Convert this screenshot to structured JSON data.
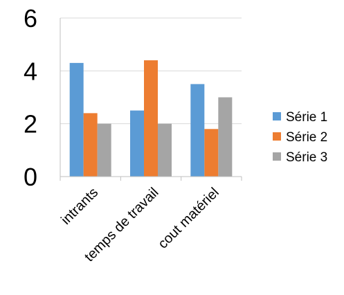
{
  "chart_data": {
    "type": "bar",
    "categories": [
      "intrants",
      "temps de travail",
      "cout matériel"
    ],
    "series": [
      {
        "name": "Série 1",
        "values": [
          4.3,
          2.5,
          3.5
        ],
        "color": "#5B9BD5"
      },
      {
        "name": "Série 2",
        "values": [
          2.4,
          4.4,
          1.8
        ],
        "color": "#ED7D31"
      },
      {
        "name": "Série 3",
        "values": [
          2.0,
          2.0,
          3.0
        ],
        "color": "#A5A5A5"
      }
    ],
    "yticks": [
      "0",
      "2",
      "4",
      "6"
    ],
    "ylim": [
      0,
      6
    ],
    "grid": true,
    "legend": "right"
  }
}
